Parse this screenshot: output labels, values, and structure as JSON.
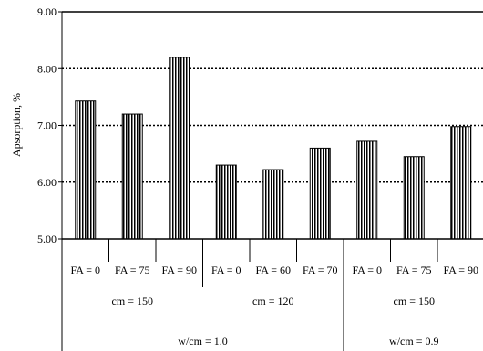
{
  "chart_data": {
    "type": "bar",
    "title": "",
    "xlabel": "",
    "ylabel": "Apsorption, %",
    "ylim": [
      5.0,
      9.0
    ],
    "yticks": [
      "5.00",
      "6.00",
      "7.00",
      "8.00",
      "9.00"
    ],
    "grid": true,
    "categories": [
      "FA = 0",
      "FA = 75",
      "FA = 90",
      "FA = 0",
      "FA = 60",
      "FA = 70",
      "FA = 0",
      "FA = 75",
      "FA = 90"
    ],
    "values": [
      7.43,
      7.2,
      8.2,
      6.3,
      6.22,
      6.6,
      6.72,
      6.45,
      6.98
    ],
    "level2": [
      "cm = 150",
      "cm = 120",
      "cm = 150"
    ],
    "level3": [
      "w/cm = 1.0",
      "w/cm = 0.9"
    ]
  }
}
